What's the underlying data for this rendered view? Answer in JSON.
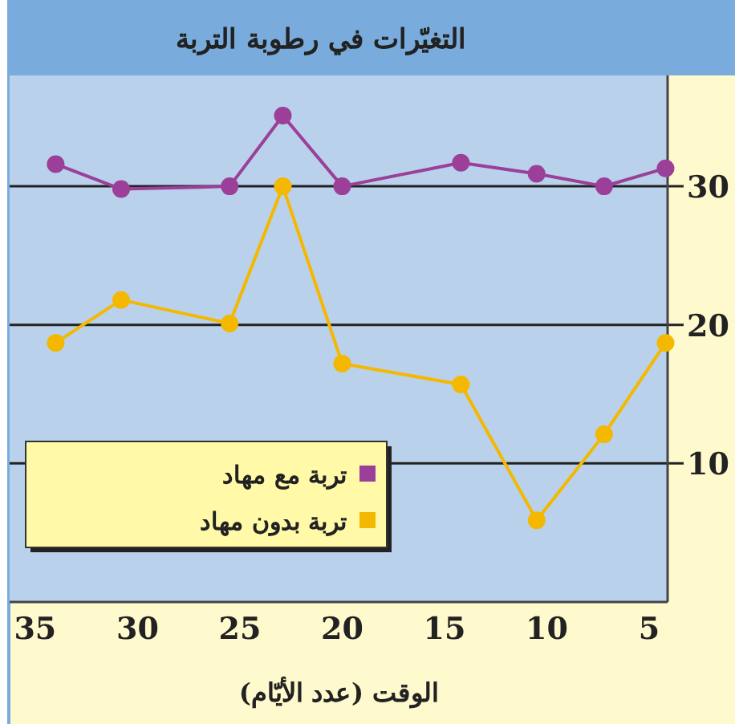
{
  "chart_data": {
    "type": "line",
    "title": "التغيّرات في رطوبة التربة",
    "xlabel": "الوقت (عدد الأيّام)",
    "xlim": [
      36.25,
      4.1
    ],
    "xticks": [
      35,
      30,
      25,
      20,
      15,
      10,
      5
    ],
    "ylim": [
      0,
      38
    ],
    "yticks": [
      10,
      20,
      30
    ],
    "grid": "y",
    "legend": "bottom left",
    "marker": "circle",
    "x": [
      34,
      30.8,
      25.5,
      22.9,
      20,
      14.2,
      10.5,
      7.2,
      4.2
    ],
    "series": [
      {
        "name": "تربة مع مهاد",
        "color": "#9b3f98",
        "values": [
          31.6,
          29.8,
          30,
          35.1,
          30,
          31.7,
          30.9,
          30,
          31.3
        ]
      },
      {
        "name": "تربة بدون مهاد",
        "color": "#f5b800",
        "values": [
          18.7,
          21.8,
          20.1,
          30,
          17.2,
          15.7,
          5.9,
          12.1,
          18.7
        ]
      }
    ]
  }
}
